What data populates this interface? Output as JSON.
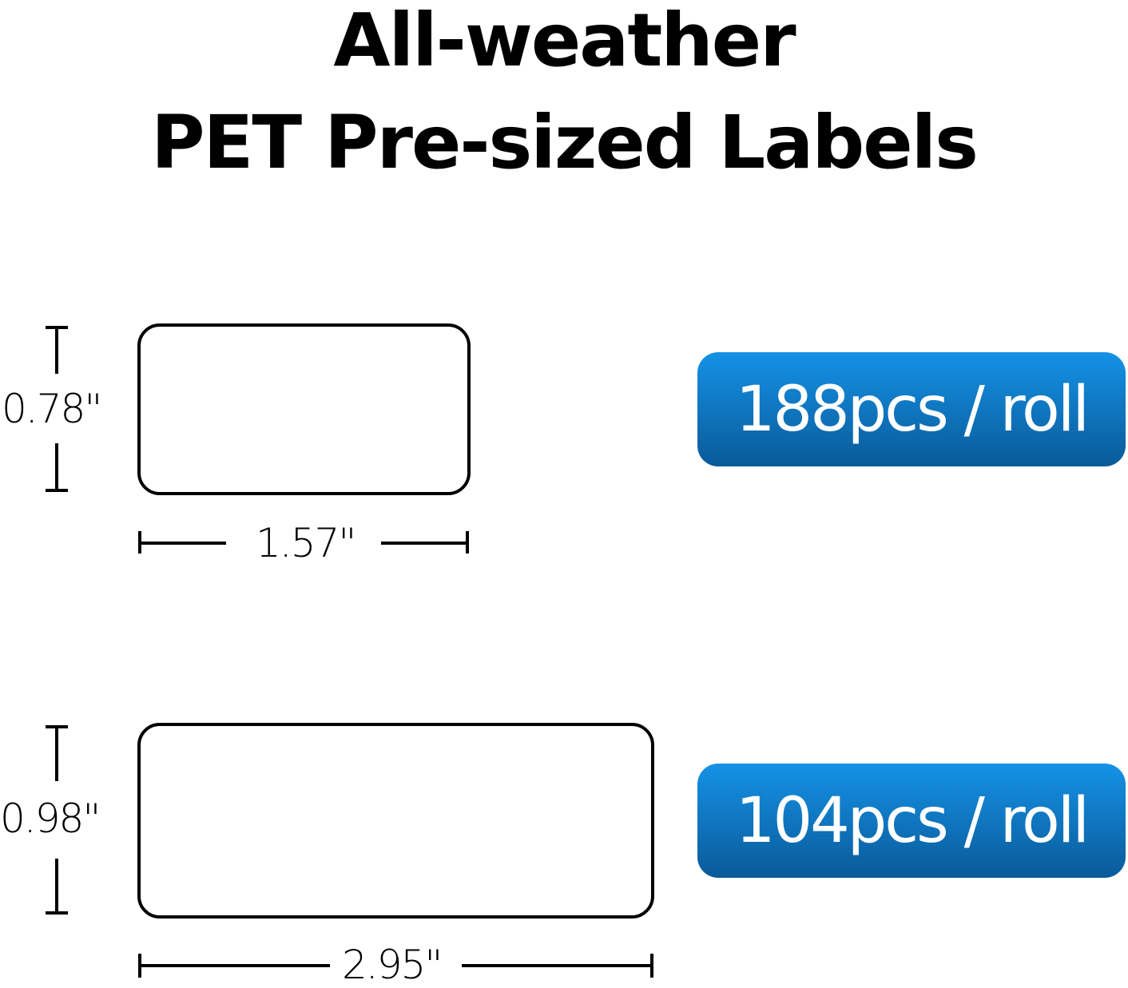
{
  "title": {
    "line1": "All-weather",
    "line2": "PET Pre-sized Labels"
  },
  "labels": [
    {
      "height": "0.78\"",
      "width": "1.57\"",
      "count": "188pcs / roll"
    },
    {
      "height": "0.98\"",
      "width": "2.95\"",
      "count": "104pcs / roll"
    }
  ],
  "colors": {
    "badge_top": "#1592e6",
    "badge_bottom": "#0a5a99"
  }
}
